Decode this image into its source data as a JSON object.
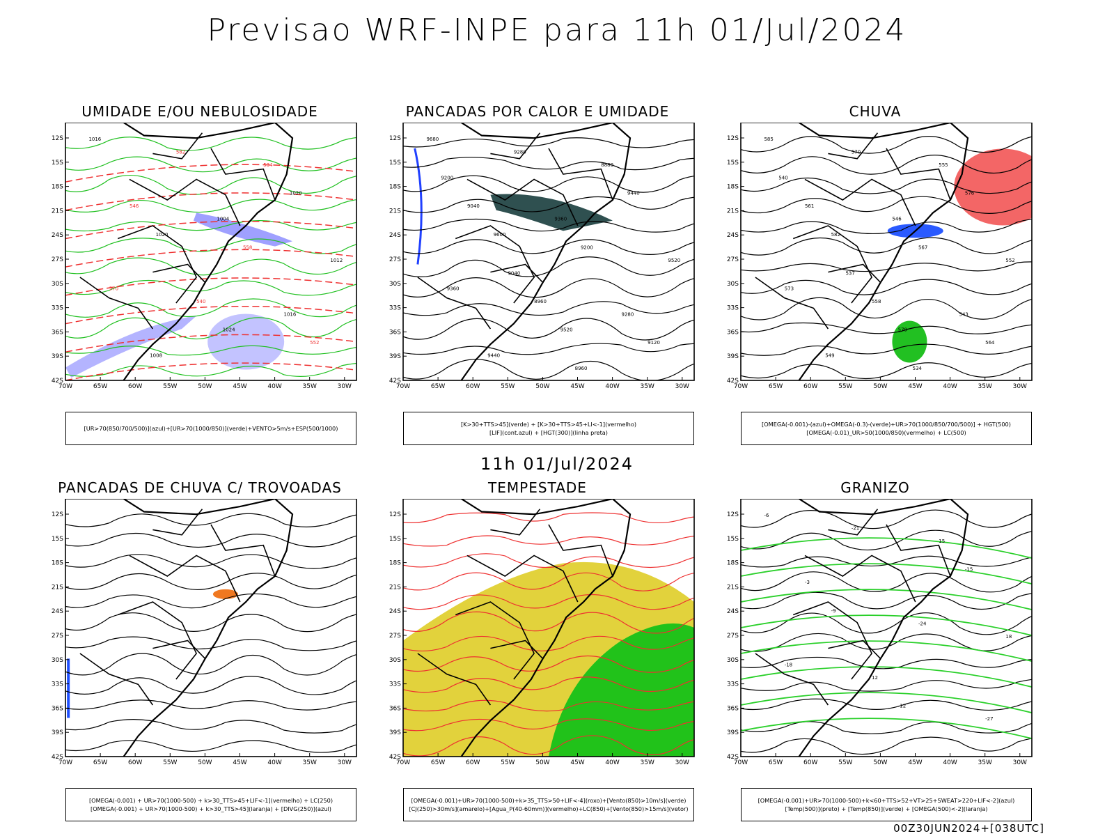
{
  "title": "Previsao WRF-INPE  para 11h 01/Jul/2024",
  "subtitle": "11h 01/Jul/2024",
  "footer": "00Z30JUN2024+[038UTC]",
  "axes": {
    "lat_ticks": [
      "12S",
      "15S",
      "18S",
      "21S",
      "24S",
      "27S",
      "30S",
      "33S",
      "36S",
      "39S",
      "42S"
    ],
    "lon_ticks": [
      "70W",
      "65W",
      "60W",
      "55W",
      "50W",
      "45W",
      "40W",
      "35W",
      "30W"
    ]
  },
  "panels": [
    {
      "id": "umidade",
      "title": "UMIDADE E/OU NEBULOSIDADE",
      "legend": [
        "[UR>70(850/700/500)](azul)+[UR>70(1000/850)](verde)+VENTO>5m/s+ESP(500/1000)"
      ],
      "labels": [
        "1016",
        "1020",
        "1024",
        "1020",
        "570",
        "582",
        "558",
        "552",
        "546",
        "540",
        "534",
        "1012",
        "1008",
        "1004",
        "1016"
      ]
    },
    {
      "id": "pancadas-calor",
      "title": "PANCADAS POR CALOR E UMIDADE",
      "legend": [
        "[K>30+TTS>45](verde) + [K>30+TTS>45+LI<-1](vermelho)",
        "[LIF](cont.azul) + [HGT(300)](linha preta)"
      ],
      "labels": [
        "9680",
        "9600",
        "9520",
        "9440",
        "9360",
        "9280",
        "9200",
        "9120",
        "9040",
        "8960",
        "8880",
        "9520",
        "9440",
        "9360",
        "9280",
        "9200",
        "9040",
        "8960"
      ]
    },
    {
      "id": "chuva",
      "title": "CHUVA",
      "legend": [
        "[OMEGA(-0.001)-(azul)+OMEGA(-0.3)-(verde)+UR>70(1000/850/700/500)] + HGT(500)",
        "[OMEGA(-0.01)_UR>50(1000/850)(vermelho) + LC(500)"
      ],
      "labels": [
        "585",
        "582",
        "579",
        "576",
        "573",
        "570",
        "567",
        "564",
        "561",
        "558",
        "555",
        "552",
        "549",
        "546",
        "543",
        "540",
        "537",
        "534"
      ]
    },
    {
      "id": "trovoadas",
      "title": "PANCADAS DE CHUVA C/ TROVOADAS",
      "legend": [
        "[OMEGA(-0.001) + UR>70(1000-500) + k>30_TTS>45+LIF<-1](vermelho) + LC(250)",
        "[OMEGA(-0.001) + UR>70(1000-500) + k>30_TTS>45](laranja) + [DIVG(250)](azul)"
      ],
      "labels": []
    },
    {
      "id": "tempestade",
      "title": "TEMPESTADE",
      "legend": [
        "[OMEGA(-0.001)+UR>70(1000-500)+k>35_TTS>50+LIF<-4](roxo)+[Vento(850)>10m/s](verde)",
        "[CJ(250)>30m/s](amarelo)+[Agua_P(40-60mm)](vermelho)+LC(850)+[Vento(850)>15m/s](vetor)"
      ],
      "labels": []
    },
    {
      "id": "granizo",
      "title": "GRANIZO",
      "legend": [
        "[OMEGA(-0.001)+UR>70(1000-500)+k<60+TTS>52+VT>25+SWEAT>220+LIF<-2](azul)",
        "[Temp(500)](preto) + [Temp(850)](verde) + [OMEGA(500)<-2](laranja)"
      ],
      "labels": [
        "-6",
        "-9",
        "-12",
        "-15",
        "-18",
        "-21",
        "-24",
        "-27",
        "-3",
        "12",
        "15",
        "18"
      ]
    }
  ]
}
